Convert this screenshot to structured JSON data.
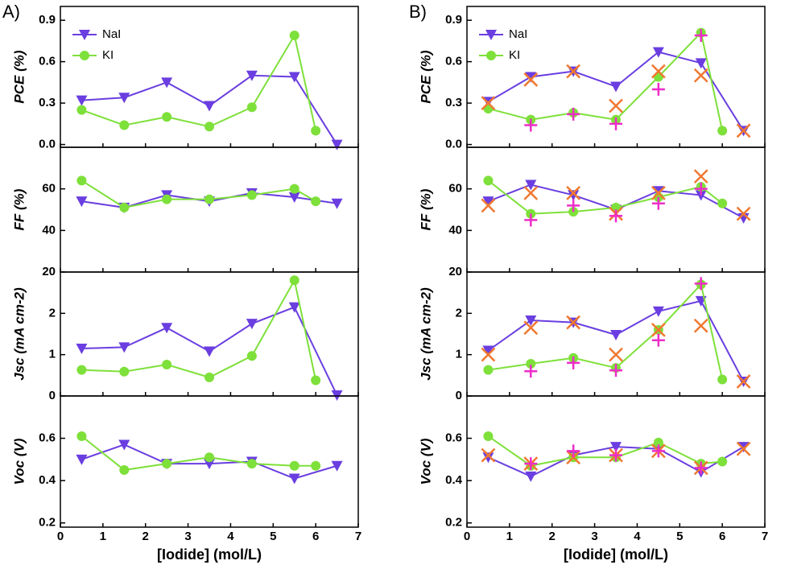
{
  "chart_data": [
    {
      "type": "line",
      "label": "A)",
      "xlabel": "[Iodide] (mol/L)",
      "xlim": [
        0,
        7
      ],
      "xticks": [
        0,
        1,
        2,
        3,
        4,
        5,
        6,
        7
      ],
      "panels": [
        {
          "ylabel": "PCE (%)",
          "ylim": [
            -0.02,
            1.0
          ],
          "yticks": [
            {
              "value": 0,
              "label": "0.0"
            },
            0.3,
            0.6,
            0.9
          ],
          "legend": "upper left",
          "series": [
            {
              "name": "NaI",
              "color": "#6a3ee0",
              "marker": "triangle-down",
              "x": [
                0.5,
                1.5,
                2.5,
                3.5,
                4.5,
                5.5,
                6.5
              ],
              "values": [
                0.32,
                0.34,
                0.45,
                0.28,
                0.5,
                0.49,
                0.0
              ]
            },
            {
              "name": "KI",
              "color": "#7ee03a",
              "marker": "circle",
              "x": [
                0.5,
                1.5,
                2.5,
                3.5,
                4.5,
                5.5,
                6
              ],
              "values": [
                0.25,
                0.14,
                0.2,
                0.13,
                0.27,
                0.79,
                0.1
              ]
            }
          ]
        },
        {
          "ylabel": "FF (%)",
          "ylim": [
            20,
            80
          ],
          "yticks": [
            20,
            40,
            60
          ],
          "series": [
            {
              "color": "#6a3ee0",
              "marker": "triangle-down",
              "x": [
                0.5,
                1.5,
                2.5,
                3.5,
                4.5,
                5.5,
                6.5
              ],
              "values": [
                54,
                51,
                57,
                54,
                58,
                56,
                53
              ]
            },
            {
              "color": "#7ee03a",
              "marker": "circle",
              "x": [
                0.5,
                1.5,
                2.5,
                3.5,
                4.5,
                5.5,
                6
              ],
              "values": [
                64,
                51,
                55,
                55,
                57,
                60,
                54
              ]
            }
          ]
        },
        {
          "ylabel": "Jsc (mA cm-2)",
          "ylim": [
            0,
            3
          ],
          "yticks": [
            0,
            1,
            2
          ],
          "series": [
            {
              "color": "#6a3ee0",
              "marker": "triangle-down",
              "x": [
                0.5,
                1.5,
                2.5,
                3.5,
                4.5,
                5.5,
                6.5
              ],
              "values": [
                1.15,
                1.18,
                1.65,
                1.08,
                1.75,
                2.15,
                0.02
              ]
            },
            {
              "color": "#7ee03a",
              "marker": "circle",
              "x": [
                0.5,
                1.5,
                2.5,
                3.5,
                4.5,
                5.5,
                6
              ],
              "values": [
                0.63,
                0.59,
                0.76,
                0.45,
                0.97,
                2.8,
                0.38
              ]
            }
          ]
        },
        {
          "ylabel": "Voc (V)",
          "ylim": [
            0.18,
            0.8
          ],
          "yticks": [
            0.2,
            0.4,
            0.6
          ],
          "series": [
            {
              "color": "#6a3ee0",
              "marker": "triangle-down",
              "x": [
                0.5,
                1.5,
                2.5,
                3.5,
                4.5,
                5.5,
                6.5
              ],
              "values": [
                0.5,
                0.57,
                0.48,
                0.48,
                0.49,
                0.41,
                0.47
              ]
            },
            {
              "color": "#7ee03a",
              "marker": "circle",
              "x": [
                0.5,
                1.5,
                2.5,
                3.5,
                4.5,
                5.5,
                6
              ],
              "values": [
                0.61,
                0.45,
                0.48,
                0.51,
                0.48,
                0.47,
                0.47
              ]
            }
          ]
        }
      ]
    },
    {
      "type": "line",
      "label": "B)",
      "xlabel": "[Iodide] (mol/L)",
      "xlim": [
        0,
        7
      ],
      "xticks": [
        0,
        1,
        2,
        3,
        4,
        5,
        6,
        7
      ],
      "panels": [
        {
          "ylabel": "PCE (%)",
          "ylim": [
            -0.02,
            1.0
          ],
          "yticks": [
            {
              "value": 0,
              "label": "0.0"
            },
            0.3,
            0.6,
            0.9
          ],
          "legend": "upper left",
          "series": [
            {
              "name": "NaI",
              "color": "#6a3ee0",
              "marker": "triangle-down",
              "x": [
                0.5,
                1.5,
                2.5,
                3.5,
                4.5,
                5.5,
                6.5
              ],
              "values": [
                0.31,
                0.49,
                0.53,
                0.42,
                0.67,
                0.59,
                0.1
              ]
            },
            {
              "name": "KI",
              "color": "#7ee03a",
              "marker": "circle",
              "x": [
                0.5,
                1.5,
                2.5,
                3.5,
                4.5,
                5.5,
                6
              ],
              "values": [
                0.26,
                0.18,
                0.23,
                0.18,
                0.49,
                0.81,
                0.1
              ]
            },
            {
              "color": "#f07830",
              "marker": "x",
              "line": false,
              "x": [
                0.5,
                1.5,
                2.5,
                3.5,
                4.5,
                5.5,
                6.5
              ],
              "values": [
                0.3,
                0.47,
                0.53,
                0.28,
                0.53,
                0.5,
                0.1
              ]
            },
            {
              "color": "#ee2cc8",
              "marker": "plus",
              "line": false,
              "x": [
                1.5,
                2.5,
                3.5,
                4.5,
                5.5
              ],
              "values": [
                0.14,
                0.22,
                0.15,
                0.4,
                0.79
              ]
            }
          ]
        },
        {
          "ylabel": "FF (%)",
          "ylim": [
            20,
            80
          ],
          "yticks": [
            20,
            40,
            60
          ],
          "series": [
            {
              "color": "#6a3ee0",
              "marker": "triangle-down",
              "x": [
                0.5,
                1.5,
                2.5,
                3.5,
                4.5,
                5.5,
                6.5
              ],
              "values": [
                54,
                62,
                57,
                50,
                59,
                57,
                46
              ]
            },
            {
              "color": "#7ee03a",
              "marker": "circle",
              "x": [
                0.5,
                1.5,
                2.5,
                3.5,
                4.5,
                5.5,
                6
              ],
              "values": [
                64,
                48,
                49,
                51,
                56,
                61,
                53
              ]
            },
            {
              "color": "#f07830",
              "marker": "x",
              "line": false,
              "x": [
                0.5,
                1.5,
                2.5,
                3.5,
                4.5,
                5.5,
                6.5
              ],
              "values": [
                52,
                58,
                58,
                48,
                58,
                66,
                48
              ]
            },
            {
              "color": "#ee2cc8",
              "marker": "plus",
              "line": false,
              "x": [
                1.5,
                2.5,
                3.5,
                4.5,
                5.5
              ],
              "values": [
                45,
                52,
                47,
                53,
                60
              ]
            }
          ]
        },
        {
          "ylabel": "Jsc (mA cm-2)",
          "ylim": [
            0,
            3
          ],
          "yticks": [
            0,
            1,
            2
          ],
          "series": [
            {
              "color": "#6a3ee0",
              "marker": "triangle-down",
              "x": [
                0.5,
                1.5,
                2.5,
                3.5,
                4.5,
                5.5,
                6.5
              ],
              "values": [
                1.1,
                1.83,
                1.78,
                1.48,
                2.05,
                2.3,
                0.35
              ]
            },
            {
              "color": "#7ee03a",
              "marker": "circle",
              "x": [
                0.5,
                1.5,
                2.5,
                3.5,
                4.5,
                5.5,
                6
              ],
              "values": [
                0.63,
                0.78,
                0.92,
                0.68,
                1.6,
                2.7,
                0.4
              ]
            },
            {
              "color": "#f07830",
              "marker": "x",
              "line": false,
              "x": [
                0.5,
                1.5,
                2.5,
                3.5,
                4.5,
                5.5,
                6.5
              ],
              "values": [
                1.0,
                1.65,
                1.78,
                1.0,
                1.6,
                1.7,
                0.35
              ]
            },
            {
              "color": "#ee2cc8",
              "marker": "plus",
              "line": false,
              "x": [
                1.5,
                2.5,
                3.5,
                4.5,
                5.5
              ],
              "values": [
                0.6,
                0.8,
                0.62,
                1.35,
                2.72
              ]
            }
          ]
        },
        {
          "ylabel": "Voc (V)",
          "ylim": [
            0.18,
            0.8
          ],
          "yticks": [
            0.2,
            0.4,
            0.6
          ],
          "series": [
            {
              "color": "#6a3ee0",
              "marker": "triangle-down",
              "x": [
                0.5,
                1.5,
                2.5,
                3.5,
                4.5,
                5.5,
                6.5
              ],
              "values": [
                0.51,
                0.42,
                0.52,
                0.56,
                0.55,
                0.44,
                0.56
              ]
            },
            {
              "color": "#7ee03a",
              "marker": "circle",
              "x": [
                0.5,
                1.5,
                2.5,
                3.5,
                4.5,
                5.5,
                6
              ],
              "values": [
                0.61,
                0.47,
                0.51,
                0.51,
                0.58,
                0.48,
                0.49
              ]
            },
            {
              "color": "#f07830",
              "marker": "x",
              "line": false,
              "x": [
                0.5,
                1.5,
                2.5,
                3.5,
                4.5,
                5.5,
                6.5
              ],
              "values": [
                0.52,
                0.48,
                0.51,
                0.52,
                0.54,
                0.46,
                0.55
              ]
            },
            {
              "color": "#ee2cc8",
              "marker": "plus",
              "line": false,
              "x": [
                1.5,
                2.5,
                3.5,
                4.5,
                5.5
              ],
              "values": [
                0.48,
                0.54,
                0.52,
                0.54,
                0.46
              ]
            }
          ]
        }
      ]
    }
  ]
}
